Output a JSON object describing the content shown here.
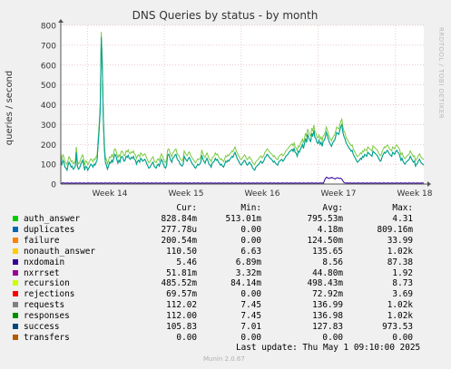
{
  "chart_data": {
    "type": "line",
    "title": "DNS Queries by status - by month",
    "ylabel": "queries / second",
    "xlabel": "",
    "ylim": [
      0,
      800
    ],
    "yticks": [
      0,
      100,
      200,
      300,
      400,
      500,
      600,
      700,
      800
    ],
    "x_tick_labels": [
      "Week 14",
      "Week 15",
      "Week 16",
      "Week 17",
      "Week 18"
    ],
    "grid": true,
    "series": [
      {
        "name": "success",
        "color": "#00a0a0",
        "values": [
          130,
          95,
          120,
          110,
          85,
          80,
          70,
          95,
          110,
          100,
          85,
          90,
          75,
          80,
          90,
          160,
          90,
          75,
          80,
          95,
          110,
          120,
          100,
          70,
          90,
          85,
          70,
          80,
          90,
          100,
          95,
          85,
          100,
          95,
          110,
          120,
          200,
          280,
          370,
          740,
          600,
          320,
          180,
          110,
          95,
          75,
          90,
          110,
          105,
          120,
          110,
          130,
          150,
          145,
          125,
          105,
          120,
          110,
          135,
          140,
          130,
          115,
          120,
          140,
          135,
          145,
          130,
          125,
          135,
          130,
          140,
          125,
          120,
          100,
          115,
          120,
          110,
          130,
          125,
          115,
          120,
          125,
          115,
          100,
          90,
          80,
          85,
          95,
          105,
          110,
          90,
          85,
          80,
          95,
          100,
          90,
          110,
          125,
          115,
          100,
          85,
          80,
          95,
          145,
          150,
          135,
          120,
          110,
          130,
          135,
          145,
          150,
          130,
          120,
          115,
          100,
          95,
          90,
          100,
          140,
          130,
          120,
          115,
          130,
          135,
          120,
          110,
          100,
          95,
          85,
          80,
          90,
          100,
          95,
          100,
          110,
          145,
          125,
          115,
          105,
          120,
          130,
          115,
          100,
          95,
          85,
          105,
          110,
          115,
          130,
          120,
          125,
          110,
          105,
          95,
          100,
          90,
          85,
          100,
          115,
          110,
          120,
          115,
          125,
          130,
          140,
          135,
          150,
          160,
          145,
          130,
          120,
          110,
          100,
          95,
          105,
          110,
          120,
          115,
          100,
          95,
          105,
          110,
          100,
          95,
          80,
          75,
          70,
          85,
          90,
          95,
          100,
          110,
          115,
          105,
          110,
          120,
          135,
          140,
          150,
          145,
          135,
          130,
          125,
          120,
          110,
          115,
          105,
          100,
          95,
          110,
          115,
          120,
          125,
          115,
          120,
          130,
          140,
          145,
          150,
          160,
          165,
          170,
          175,
          165,
          180,
          160,
          155,
          140,
          165,
          160,
          175,
          185,
          200,
          180,
          205,
          230,
          210,
          250,
          235,
          220,
          215,
          255,
          240,
          270,
          235,
          230,
          210,
          205,
          220,
          200,
          210,
          190,
          215,
          220,
          235,
          260,
          245,
          225,
          210,
          200,
          190,
          205,
          215,
          220,
          240,
          260,
          255,
          250,
          270,
          290,
          300,
          260,
          240,
          230,
          210,
          200,
          190,
          180,
          175,
          165,
          170,
          150,
          140,
          130,
          120,
          110,
          115,
          120,
          130,
          125,
          140,
          135,
          150,
          145,
          140,
          160,
          155,
          150,
          145,
          140,
          165,
          160,
          155,
          150,
          145,
          135,
          125,
          115,
          120,
          140,
          150,
          160,
          155,
          165,
          170,
          160,
          150,
          145,
          140,
          160,
          155,
          150,
          165,
          170,
          160,
          155,
          140,
          120,
          130,
          115,
          105,
          100,
          110,
          115,
          120,
          125,
          140,
          130,
          120,
          110,
          115,
          90,
          100,
          105,
          120,
          125,
          110,
          105,
          100,
          95
        ]
      },
      {
        "name": "nxdomain",
        "color": "#330099",
        "values": [
          5,
          4,
          6,
          5,
          5,
          4,
          6,
          5,
          4,
          5,
          6,
          5,
          4,
          5,
          6,
          5,
          5,
          4,
          6,
          5,
          4,
          5,
          6,
          5,
          4,
          5,
          6,
          5,
          5,
          4,
          6,
          5,
          4,
          5,
          6,
          5,
          4,
          5,
          6,
          5,
          4,
          5,
          6,
          5,
          5,
          4,
          6,
          5,
          4,
          5,
          6,
          5,
          4,
          5,
          6,
          5,
          5,
          4,
          6,
          5,
          4,
          5,
          6,
          5,
          4,
          5,
          6,
          5,
          5,
          4,
          6,
          5,
          4,
          5,
          6,
          5,
          4,
          5,
          6,
          5,
          5,
          4,
          6,
          5,
          4,
          5,
          6,
          5,
          4,
          5,
          6,
          5,
          5,
          4,
          6,
          5,
          4,
          5,
          6,
          5,
          4,
          5,
          6,
          5,
          5,
          4,
          6,
          5,
          4,
          5,
          6,
          5,
          4,
          5,
          6,
          5,
          5,
          4,
          6,
          5,
          4,
          5,
          6,
          5,
          4,
          5,
          6,
          5,
          5,
          4,
          6,
          5,
          4,
          5,
          6,
          5,
          4,
          5,
          6,
          5,
          5,
          4,
          6,
          5,
          4,
          5,
          6,
          5,
          4,
          5,
          6,
          5,
          5,
          4,
          6,
          5,
          4,
          5,
          6,
          5,
          4,
          5,
          6,
          5,
          5,
          4,
          6,
          5,
          4,
          5,
          6,
          5,
          4,
          5,
          6,
          5,
          5,
          4,
          6,
          5,
          4,
          5,
          6,
          5,
          4,
          5,
          6,
          5,
          5,
          4,
          6,
          5,
          4,
          5,
          6,
          5,
          4,
          5,
          6,
          5,
          5,
          4,
          6,
          5,
          4,
          5,
          6,
          5,
          4,
          5,
          6,
          5,
          5,
          4,
          6,
          5,
          4,
          5,
          6,
          5,
          4,
          5,
          6,
          5,
          5,
          4,
          6,
          5,
          4,
          5,
          6,
          5,
          4,
          5,
          6,
          5,
          5,
          4,
          6,
          5,
          4,
          5,
          6,
          5,
          4,
          5,
          6,
          5,
          5,
          4,
          20,
          30,
          35,
          30,
          28,
          32,
          30,
          34,
          30,
          28,
          25,
          30,
          32,
          30,
          28,
          30,
          26,
          20,
          10,
          6,
          5,
          6,
          5,
          4,
          6,
          5,
          4,
          5,
          6,
          5,
          4,
          5,
          6,
          5,
          5,
          4,
          6,
          5,
          4,
          5,
          6,
          5,
          4,
          5,
          6,
          5,
          5,
          4,
          6,
          5,
          4,
          5,
          6,
          5,
          4,
          5,
          6,
          5,
          5,
          4,
          6,
          5,
          4,
          5,
          6,
          5,
          4,
          5,
          6,
          5,
          5,
          4,
          6,
          5,
          4,
          5,
          6,
          5,
          4,
          5,
          6,
          5,
          5,
          4,
          6,
          5,
          4,
          5,
          6,
          5,
          4,
          5,
          6,
          5,
          5
        ]
      }
    ]
  },
  "legend": {
    "headers": {
      "cur": "Cur:",
      "min": "Min:",
      "avg": "Avg:",
      "max": "Max:"
    },
    "rows": [
      {
        "name": "auth_answer",
        "color": "#00cc00",
        "cur": "828.84m",
        "min": "513.01m",
        "avg": "795.53m",
        "max": "4.31"
      },
      {
        "name": "duplicates",
        "color": "#0066b3",
        "cur": "277.78u",
        "min": "0.00",
        "avg": "4.18m",
        "max": "809.16m"
      },
      {
        "name": "failure",
        "color": "#ff8000",
        "cur": "200.54m",
        "min": "0.00",
        "avg": "124.50m",
        "max": "33.99"
      },
      {
        "name": "nonauth_answer",
        "color": "#ffcc00",
        "cur": "110.50",
        "min": "6.63",
        "avg": "135.65",
        "max": "1.02k"
      },
      {
        "name": "nxdomain",
        "color": "#330099",
        "cur": "5.46",
        "min": "6.89m",
        "avg": "8.56",
        "max": "87.38"
      },
      {
        "name": "nxrrset",
        "color": "#990099",
        "cur": "51.81m",
        "min": "3.32m",
        "avg": "44.80m",
        "max": "1.92"
      },
      {
        "name": "recursion",
        "color": "#ccff00",
        "cur": "485.52m",
        "min": "84.14m",
        "avg": "498.43m",
        "max": "8.73"
      },
      {
        "name": "rejections",
        "color": "#ff0000",
        "cur": "69.57m",
        "min": "0.00",
        "avg": "72.92m",
        "max": "3.69"
      },
      {
        "name": "requests",
        "color": "#808080",
        "cur": "112.02",
        "min": "7.45",
        "avg": "136.99",
        "max": "1.02k"
      },
      {
        "name": "responses",
        "color": "#008f00",
        "cur": "112.00",
        "min": "7.45",
        "avg": "136.98",
        "max": "1.02k"
      },
      {
        "name": "success",
        "color": "#00487d",
        "cur": "105.83",
        "min": "7.01",
        "avg": "127.83",
        "max": "973.53"
      },
      {
        "name": "transfers",
        "color": "#b35a00",
        "cur": "0.00",
        "min": "0.00",
        "avg": "0.00",
        "max": "0.00"
      }
    ]
  },
  "footer": {
    "last_update": "Last update: Thu May  1 09:10:00 2025",
    "version": "Munin 2.0.67"
  },
  "watermark": "RRDTOOL / TOBI OETIKER"
}
